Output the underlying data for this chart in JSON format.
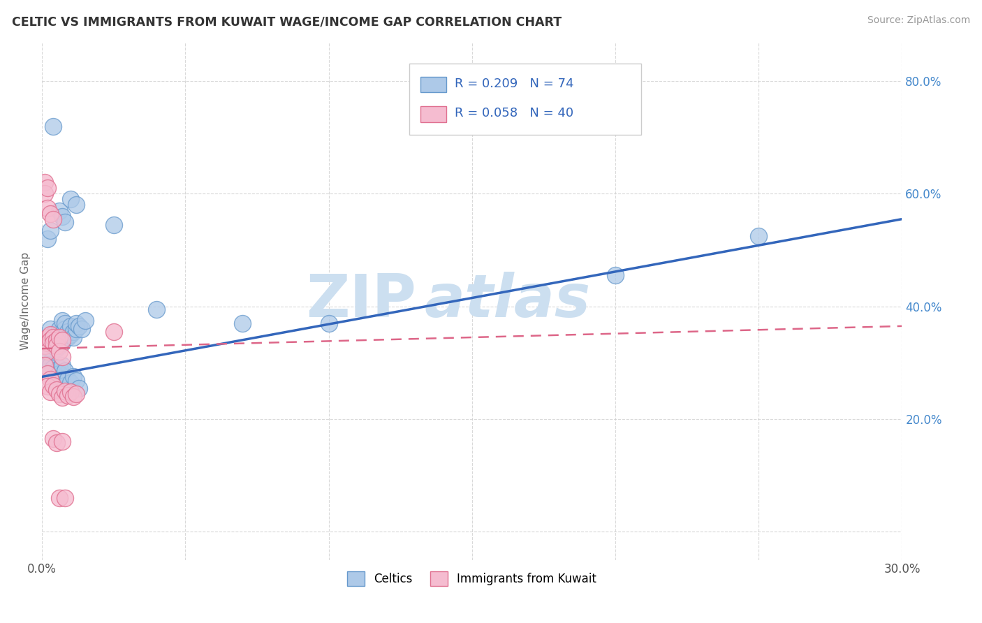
{
  "title": "CELTIC VS IMMIGRANTS FROM KUWAIT WAGE/INCOME GAP CORRELATION CHART",
  "source": "Source: ZipAtlas.com",
  "ylabel": "Wage/Income Gap",
  "xlim": [
    0.0,
    0.3
  ],
  "ylim": [
    -0.05,
    0.87
  ],
  "xticks": [
    0.0,
    0.05,
    0.1,
    0.15,
    0.2,
    0.25,
    0.3
  ],
  "yticks": [
    0.0,
    0.2,
    0.4,
    0.6,
    0.8
  ],
  "xticklabels": [
    "0.0%",
    "",
    "",
    "",
    "",
    "",
    "30.0%"
  ],
  "yticklabels": [
    "",
    "20.0%",
    "40.0%",
    "60.0%",
    "80.0%"
  ],
  "celtics_color": "#adc9e8",
  "kuwait_color": "#f5bcd0",
  "celtics_edge": "#6699cc",
  "kuwait_edge": "#e07090",
  "trend_celtics_color": "#3366bb",
  "trend_kuwait_color": "#dd6688",
  "watermark_color": "#ccdff0",
  "trend_celtics": [
    0.0,
    0.3,
    0.275,
    0.555
  ],
  "trend_kuwait": [
    0.0,
    0.3,
    0.325,
    0.365
  ],
  "celtics_scatter": [
    [
      0.001,
      0.335
    ],
    [
      0.001,
      0.325
    ],
    [
      0.001,
      0.315
    ],
    [
      0.002,
      0.33
    ],
    [
      0.002,
      0.32
    ],
    [
      0.002,
      0.34
    ],
    [
      0.003,
      0.335
    ],
    [
      0.003,
      0.325
    ],
    [
      0.003,
      0.36
    ],
    [
      0.004,
      0.34
    ],
    [
      0.004,
      0.33
    ],
    [
      0.004,
      0.35
    ],
    [
      0.005,
      0.345
    ],
    [
      0.005,
      0.335
    ],
    [
      0.005,
      0.325
    ],
    [
      0.006,
      0.34
    ],
    [
      0.006,
      0.33
    ],
    [
      0.006,
      0.36
    ],
    [
      0.007,
      0.345
    ],
    [
      0.007,
      0.335
    ],
    [
      0.007,
      0.375
    ],
    [
      0.008,
      0.35
    ],
    [
      0.008,
      0.36
    ],
    [
      0.008,
      0.37
    ],
    [
      0.009,
      0.345
    ],
    [
      0.009,
      0.355
    ],
    [
      0.01,
      0.35
    ],
    [
      0.01,
      0.365
    ],
    [
      0.011,
      0.355
    ],
    [
      0.011,
      0.345
    ],
    [
      0.012,
      0.36
    ],
    [
      0.012,
      0.37
    ],
    [
      0.013,
      0.365
    ],
    [
      0.014,
      0.36
    ],
    [
      0.015,
      0.375
    ],
    [
      0.002,
      0.295
    ],
    [
      0.002,
      0.285
    ],
    [
      0.003,
      0.295
    ],
    [
      0.003,
      0.28
    ],
    [
      0.004,
      0.29
    ],
    [
      0.004,
      0.27
    ],
    [
      0.005,
      0.285
    ],
    [
      0.005,
      0.275
    ],
    [
      0.006,
      0.29
    ],
    [
      0.006,
      0.28
    ],
    [
      0.007,
      0.295
    ],
    [
      0.007,
      0.27
    ],
    [
      0.008,
      0.285
    ],
    [
      0.008,
      0.26
    ],
    [
      0.009,
      0.27
    ],
    [
      0.01,
      0.265
    ],
    [
      0.011,
      0.275
    ],
    [
      0.012,
      0.268
    ],
    [
      0.013,
      0.255
    ],
    [
      0.002,
      0.52
    ],
    [
      0.003,
      0.535
    ],
    [
      0.004,
      0.72
    ],
    [
      0.006,
      0.57
    ],
    [
      0.007,
      0.56
    ],
    [
      0.008,
      0.55
    ],
    [
      0.01,
      0.59
    ],
    [
      0.012,
      0.58
    ],
    [
      0.025,
      0.545
    ],
    [
      0.04,
      0.395
    ],
    [
      0.07,
      0.37
    ],
    [
      0.1,
      0.37
    ],
    [
      0.2,
      0.455
    ],
    [
      0.25,
      0.525
    ]
  ],
  "kuwait_scatter": [
    [
      0.001,
      0.34
    ],
    [
      0.001,
      0.33
    ],
    [
      0.002,
      0.345
    ],
    [
      0.002,
      0.335
    ],
    [
      0.002,
      0.32
    ],
    [
      0.003,
      0.35
    ],
    [
      0.003,
      0.34
    ],
    [
      0.004,
      0.345
    ],
    [
      0.004,
      0.335
    ],
    [
      0.005,
      0.34
    ],
    [
      0.005,
      0.33
    ],
    [
      0.006,
      0.345
    ],
    [
      0.006,
      0.32
    ],
    [
      0.007,
      0.34
    ],
    [
      0.007,
      0.31
    ],
    [
      0.001,
      0.62
    ],
    [
      0.001,
      0.6
    ],
    [
      0.002,
      0.61
    ],
    [
      0.002,
      0.575
    ],
    [
      0.003,
      0.565
    ],
    [
      0.004,
      0.555
    ],
    [
      0.001,
      0.295
    ],
    [
      0.002,
      0.28
    ],
    [
      0.003,
      0.27
    ],
    [
      0.002,
      0.258
    ],
    [
      0.003,
      0.248
    ],
    [
      0.004,
      0.26
    ],
    [
      0.005,
      0.252
    ],
    [
      0.006,
      0.245
    ],
    [
      0.007,
      0.238
    ],
    [
      0.008,
      0.25
    ],
    [
      0.009,
      0.242
    ],
    [
      0.01,
      0.248
    ],
    [
      0.011,
      0.24
    ],
    [
      0.012,
      0.245
    ],
    [
      0.004,
      0.165
    ],
    [
      0.005,
      0.158
    ],
    [
      0.006,
      0.06
    ],
    [
      0.007,
      0.16
    ],
    [
      0.008,
      0.06
    ],
    [
      0.025,
      0.355
    ]
  ]
}
